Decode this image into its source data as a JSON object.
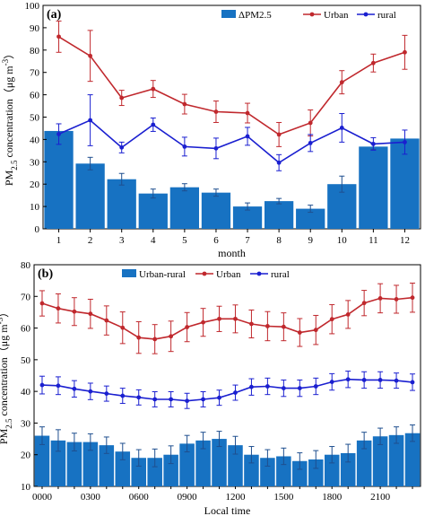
{
  "chart_data": [
    {
      "panel_label": "(a)",
      "type": "bar+line",
      "x_label": "month",
      "y_label_main": "PM",
      "y_label_sub": "2.5",
      "y_label_tail": " concentration（μg m",
      "y_label_sup": "-3",
      "y_label_close": "）",
      "ylim": [
        0,
        100
      ],
      "yticks": [
        0,
        10,
        20,
        30,
        40,
        50,
        60,
        70,
        80,
        90,
        100
      ],
      "categories": [
        "1",
        "2",
        "3",
        "4",
        "5",
        "6",
        "7",
        "8",
        "9",
        "10",
        "11",
        "12"
      ],
      "grid": false,
      "legend_position": "top-right",
      "legend": [
        "ΔPM2.5",
        "Urban",
        "rural"
      ],
      "bars": {
        "name": "ΔPM2.5",
        "color": "#1772c2",
        "values": [
          43.8,
          29.2,
          22.2,
          15.8,
          18.6,
          16.2,
          10.0,
          12.4,
          9.0,
          20.0,
          36.8,
          40.4
        ],
        "errors": [
          0,
          2.8,
          2.6,
          2.0,
          1.6,
          1.6,
          1.6,
          1.2,
          1.6,
          3.6,
          1.2,
          0
        ]
      },
      "series": [
        {
          "name": "Urban",
          "color": "#c0282d",
          "values": [
            86.0,
            77.4,
            58.6,
            62.6,
            55.8,
            52.4,
            51.8,
            42.2,
            47.4,
            65.6,
            74.2,
            79.0
          ],
          "errors": [
            7.0,
            11.4,
            3.4,
            3.8,
            4.4,
            4.8,
            4.4,
            5.4,
            5.8,
            5.2,
            4.0,
            7.6
          ]
        },
        {
          "name": "rural",
          "color": "#1a1fd0",
          "values": [
            42.4,
            48.6,
            36.4,
            46.6,
            36.8,
            36.0,
            41.4,
            29.6,
            38.4,
            45.2,
            38.0,
            38.8
          ],
          "errors": [
            4.6,
            11.4,
            2.4,
            3.0,
            4.2,
            4.6,
            4.0,
            3.6,
            3.8,
            6.4,
            2.8,
            5.4
          ]
        }
      ]
    },
    {
      "panel_label": "(b)",
      "type": "bar+line",
      "x_label": "Local time",
      "y_label_main": "PM",
      "y_label_sub": "2.5",
      "y_label_tail": " concentration（μg m",
      "y_label_sup": "-3",
      "y_label_close": "）",
      "ylim": [
        10,
        80
      ],
      "yticks": [
        10,
        20,
        30,
        40,
        50,
        60,
        70,
        80
      ],
      "x_hours": [
        0,
        1,
        2,
        3,
        4,
        5,
        6,
        7,
        8,
        9,
        10,
        11,
        12,
        13,
        14,
        15,
        16,
        17,
        18,
        19,
        20,
        21,
        22,
        23
      ],
      "x_tick_labels": [
        "0000",
        "0300",
        "0600",
        "0900",
        "1200",
        "1500",
        "1800",
        "2100"
      ],
      "grid": false,
      "legend_position": "top-left",
      "legend": [
        "Urban-rural",
        "Urban",
        "rural"
      ],
      "bars": {
        "name": "Urban-rural",
        "color": "#1772c2",
        "values": [
          26.0,
          24.5,
          24.0,
          24.0,
          23.0,
          21.0,
          19.0,
          19.0,
          20.0,
          23.5,
          24.5,
          25.0,
          23.0,
          20.0,
          19.0,
          19.5,
          18.0,
          18.5,
          20.0,
          20.5,
          24.5,
          25.8,
          26.2,
          26.8
        ],
        "errors": [
          2.8,
          3.4,
          2.8,
          2.6,
          2.6,
          2.6,
          2.6,
          2.8,
          2.8,
          2.6,
          2.6,
          2.4,
          2.8,
          2.6,
          2.6,
          2.6,
          2.6,
          2.8,
          2.6,
          2.8,
          2.6,
          2.6,
          2.6,
          2.6
        ]
      },
      "series": [
        {
          "name": "Urban",
          "color": "#c0282d",
          "values": [
            67.8,
            66.2,
            65.2,
            64.5,
            62.4,
            60.1,
            57.0,
            56.5,
            57.4,
            60.3,
            61.8,
            62.9,
            62.9,
            61.3,
            60.6,
            60.4,
            58.6,
            59.4,
            62.8,
            64.3,
            67.9,
            69.4,
            69.1,
            69.6
          ],
          "errors": [
            4.0,
            4.6,
            4.4,
            4.6,
            4.6,
            5.0,
            5.0,
            4.6,
            4.8,
            4.6,
            4.4,
            4.0,
            4.4,
            4.4,
            4.6,
            4.4,
            4.4,
            4.6,
            4.6,
            4.4,
            4.0,
            4.6,
            4.4,
            4.6
          ]
        },
        {
          "name": "rural",
          "color": "#1a1fd0",
          "values": [
            42.0,
            41.8,
            40.8,
            40.0,
            39.3,
            38.6,
            38.1,
            37.5,
            37.5,
            37.0,
            37.5,
            38.0,
            39.6,
            41.4,
            41.6,
            41.0,
            41.0,
            41.6,
            43.0,
            43.8,
            43.6,
            43.6,
            43.4,
            42.9
          ],
          "errors": [
            2.8,
            2.8,
            2.6,
            2.6,
            2.4,
            2.4,
            2.4,
            2.4,
            2.4,
            2.4,
            2.4,
            2.4,
            2.4,
            2.6,
            2.6,
            2.6,
            2.6,
            2.6,
            2.6,
            2.6,
            2.6,
            2.6,
            2.4,
            2.6
          ]
        }
      ]
    }
  ]
}
